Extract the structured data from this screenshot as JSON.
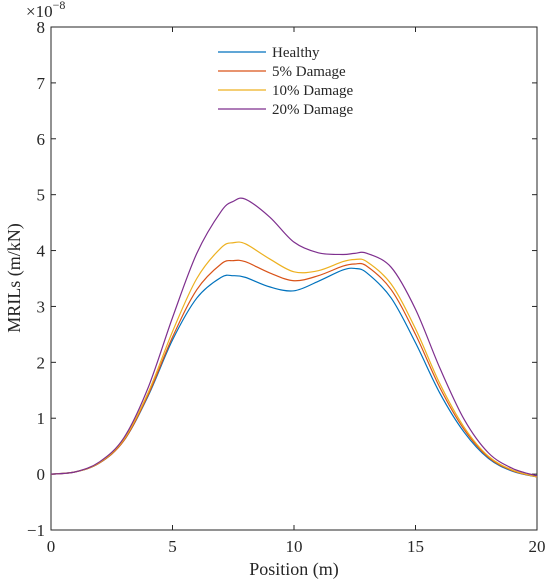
{
  "chart_data": {
    "type": "line",
    "xlabel": "Position (m)",
    "ylabel": "MRILs (m/kN)",
    "xlim": [
      0,
      20
    ],
    "ylim": [
      -1,
      8
    ],
    "y_exponent_label": "×10",
    "y_exponent_power": "−8",
    "x_ticks": [
      0,
      5,
      10,
      15,
      20
    ],
    "y_ticks": [
      -1,
      0,
      1,
      2,
      3,
      4,
      5,
      6,
      7,
      8
    ],
    "x_tick_labels": [
      "0",
      "5",
      "10",
      "15",
      "20"
    ],
    "y_tick_labels": [
      "−1",
      "0",
      "1",
      "2",
      "3",
      "4",
      "5",
      "6",
      "7",
      "8"
    ],
    "grid": false,
    "legend_position": "top-center",
    "series": [
      {
        "name": "Healthy",
        "color": "#0072BD",
        "x": [
          0,
          1,
          2,
          3,
          4,
          5,
          6,
          7,
          7.5,
          8,
          9,
          10,
          11,
          12,
          12.5,
          13,
          14,
          15,
          16,
          17,
          18,
          19,
          20
        ],
        "y": [
          0,
          0.04,
          0.2,
          0.6,
          1.4,
          2.4,
          3.15,
          3.52,
          3.55,
          3.52,
          3.35,
          3.28,
          3.45,
          3.65,
          3.68,
          3.6,
          3.15,
          2.35,
          1.45,
          0.75,
          0.28,
          0.05,
          -0.05
        ]
      },
      {
        "name": "5% Damage",
        "color": "#D95319",
        "x": [
          0,
          1,
          2,
          3,
          4,
          5,
          6,
          7,
          7.5,
          8,
          9,
          10,
          11,
          12,
          12.5,
          13,
          14,
          15,
          16,
          17,
          18,
          19,
          20
        ],
        "y": [
          0,
          0.04,
          0.2,
          0.6,
          1.42,
          2.45,
          3.3,
          3.76,
          3.82,
          3.8,
          3.6,
          3.46,
          3.55,
          3.72,
          3.76,
          3.72,
          3.3,
          2.5,
          1.55,
          0.8,
          0.3,
          0.06,
          -0.05
        ]
      },
      {
        "name": "10% Damage",
        "color": "#EDB120",
        "x": [
          0,
          1,
          2,
          3,
          4,
          5,
          6,
          7,
          7.5,
          8,
          9,
          10,
          11,
          12,
          12.5,
          13,
          14,
          15,
          16,
          17,
          18,
          19,
          20
        ],
        "y": [
          0,
          0.04,
          0.21,
          0.62,
          1.46,
          2.55,
          3.5,
          4.05,
          4.14,
          4.12,
          3.85,
          3.62,
          3.64,
          3.8,
          3.84,
          3.8,
          3.4,
          2.6,
          1.62,
          0.84,
          0.32,
          0.07,
          -0.05
        ]
      },
      {
        "name": "20% Damage",
        "color": "#7E2F8E",
        "x": [
          0,
          1,
          2,
          3,
          4,
          5,
          6,
          7,
          7.5,
          8,
          9,
          10,
          11,
          12,
          12.5,
          13,
          14,
          15,
          16,
          17,
          18,
          19,
          20
        ],
        "y": [
          0,
          0.04,
          0.22,
          0.65,
          1.55,
          2.8,
          3.95,
          4.7,
          4.88,
          4.92,
          4.6,
          4.15,
          3.96,
          3.93,
          3.95,
          3.95,
          3.7,
          2.95,
          1.9,
          0.98,
          0.38,
          0.1,
          -0.03
        ]
      }
    ]
  }
}
